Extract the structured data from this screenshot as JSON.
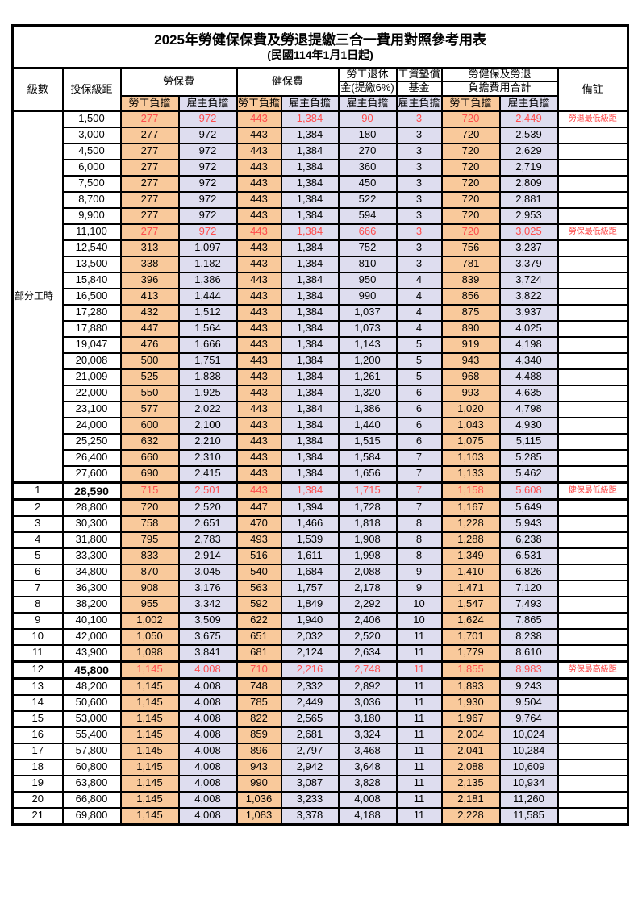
{
  "title": "2025年勞健保保費及勞退提繳三合一費用對照參考用表",
  "subtitle": "(民國114年1月1日起)",
  "colors": {
    "employee_bg": "#F9C99B",
    "employer_bg": "#DEDDEF",
    "value_red": "#FF4D4D",
    "note_red": "#FF4040",
    "border": "#000000"
  },
  "header": {
    "level": "級數",
    "bracket": "投保級距",
    "labor_insurance": "勞保費",
    "health_insurance": "健保費",
    "pension_line1": "勞工退休",
    "pension_line2": "金(提繳6%)",
    "wage_fund_line1": "工資墊償",
    "wage_fund_line2": "基金",
    "total_line1": "勞健保及勞退",
    "total_line2": "負擔費用合計",
    "note": "備註",
    "employee": "勞工負擔",
    "employer": "雇主負擔"
  },
  "part_time_label": "部分工時",
  "part_time_rowspan": 23,
  "rows": [
    {
      "level": "",
      "bracket": "1,500",
      "values": [
        "277",
        "972",
        "443",
        "1,384",
        "90",
        "3",
        "720",
        "2,449"
      ],
      "note": "勞退最低級距",
      "red": true,
      "bold": false,
      "thick": false
    },
    {
      "level": "",
      "bracket": "3,000",
      "values": [
        "277",
        "972",
        "443",
        "1,384",
        "180",
        "3",
        "720",
        "2,539"
      ],
      "note": "",
      "red": false,
      "bold": false,
      "thick": false
    },
    {
      "level": "",
      "bracket": "4,500",
      "values": [
        "277",
        "972",
        "443",
        "1,384",
        "270",
        "3",
        "720",
        "2,629"
      ],
      "note": "",
      "red": false,
      "bold": false,
      "thick": false
    },
    {
      "level": "",
      "bracket": "6,000",
      "values": [
        "277",
        "972",
        "443",
        "1,384",
        "360",
        "3",
        "720",
        "2,719"
      ],
      "note": "",
      "red": false,
      "bold": false,
      "thick": false
    },
    {
      "level": "",
      "bracket": "7,500",
      "values": [
        "277",
        "972",
        "443",
        "1,384",
        "450",
        "3",
        "720",
        "2,809"
      ],
      "note": "",
      "red": false,
      "bold": false,
      "thick": false
    },
    {
      "level": "",
      "bracket": "8,700",
      "values": [
        "277",
        "972",
        "443",
        "1,384",
        "522",
        "3",
        "720",
        "2,881"
      ],
      "note": "",
      "red": false,
      "bold": false,
      "thick": false
    },
    {
      "level": "",
      "bracket": "9,900",
      "values": [
        "277",
        "972",
        "443",
        "1,384",
        "594",
        "3",
        "720",
        "2,953"
      ],
      "note": "",
      "red": false,
      "bold": false,
      "thick": false
    },
    {
      "level": "",
      "bracket": "11,100",
      "values": [
        "277",
        "972",
        "443",
        "1,384",
        "666",
        "3",
        "720",
        "3,025"
      ],
      "note": "勞保最低級距",
      "red": true,
      "bold": false,
      "thick": false
    },
    {
      "level": "",
      "bracket": "12,540",
      "values": [
        "313",
        "1,097",
        "443",
        "1,384",
        "752",
        "3",
        "756",
        "3,237"
      ],
      "note": "",
      "red": false,
      "bold": false,
      "thick": false
    },
    {
      "level": "",
      "bracket": "13,500",
      "values": [
        "338",
        "1,182",
        "443",
        "1,384",
        "810",
        "3",
        "781",
        "3,379"
      ],
      "note": "",
      "red": false,
      "bold": false,
      "thick": false
    },
    {
      "level": "",
      "bracket": "15,840",
      "values": [
        "396",
        "1,386",
        "443",
        "1,384",
        "950",
        "4",
        "839",
        "3,724"
      ],
      "note": "",
      "red": false,
      "bold": false,
      "thick": false
    },
    {
      "level": "",
      "bracket": "16,500",
      "values": [
        "413",
        "1,444",
        "443",
        "1,384",
        "990",
        "4",
        "856",
        "3,822"
      ],
      "note": "",
      "red": false,
      "bold": false,
      "thick": false
    },
    {
      "level": "",
      "bracket": "17,280",
      "values": [
        "432",
        "1,512",
        "443",
        "1,384",
        "1,037",
        "4",
        "875",
        "3,937"
      ],
      "note": "",
      "red": false,
      "bold": false,
      "thick": false
    },
    {
      "level": "",
      "bracket": "17,880",
      "values": [
        "447",
        "1,564",
        "443",
        "1,384",
        "1,073",
        "4",
        "890",
        "4,025"
      ],
      "note": "",
      "red": false,
      "bold": false,
      "thick": false
    },
    {
      "level": "",
      "bracket": "19,047",
      "values": [
        "476",
        "1,666",
        "443",
        "1,384",
        "1,143",
        "5",
        "919",
        "4,198"
      ],
      "note": "",
      "red": false,
      "bold": false,
      "thick": false
    },
    {
      "level": "",
      "bracket": "20,008",
      "values": [
        "500",
        "1,751",
        "443",
        "1,384",
        "1,200",
        "5",
        "943",
        "4,340"
      ],
      "note": "",
      "red": false,
      "bold": false,
      "thick": false
    },
    {
      "level": "",
      "bracket": "21,009",
      "values": [
        "525",
        "1,838",
        "443",
        "1,384",
        "1,261",
        "5",
        "968",
        "4,488"
      ],
      "note": "",
      "red": false,
      "bold": false,
      "thick": false
    },
    {
      "level": "",
      "bracket": "22,000",
      "values": [
        "550",
        "1,925",
        "443",
        "1,384",
        "1,320",
        "6",
        "993",
        "4,635"
      ],
      "note": "",
      "red": false,
      "bold": false,
      "thick": false
    },
    {
      "level": "",
      "bracket": "23,100",
      "values": [
        "577",
        "2,022",
        "443",
        "1,384",
        "1,386",
        "6",
        "1,020",
        "4,798"
      ],
      "note": "",
      "red": false,
      "bold": false,
      "thick": false
    },
    {
      "level": "",
      "bracket": "24,000",
      "values": [
        "600",
        "2,100",
        "443",
        "1,384",
        "1,440",
        "6",
        "1,043",
        "4,930"
      ],
      "note": "",
      "red": false,
      "bold": false,
      "thick": false
    },
    {
      "level": "",
      "bracket": "25,250",
      "values": [
        "632",
        "2,210",
        "443",
        "1,384",
        "1,515",
        "6",
        "1,075",
        "5,115"
      ],
      "note": "",
      "red": false,
      "bold": false,
      "thick": false
    },
    {
      "level": "",
      "bracket": "26,400",
      "values": [
        "660",
        "2,310",
        "443",
        "1,384",
        "1,584",
        "7",
        "1,103",
        "5,285"
      ],
      "note": "",
      "red": false,
      "bold": false,
      "thick": false
    },
    {
      "level": "",
      "bracket": "27,600",
      "values": [
        "690",
        "2,415",
        "443",
        "1,384",
        "1,656",
        "7",
        "1,133",
        "5,462"
      ],
      "note": "",
      "red": false,
      "bold": false,
      "thick": false
    },
    {
      "level": "1",
      "bracket": "28,590",
      "values": [
        "715",
        "2,501",
        "443",
        "1,384",
        "1,715",
        "7",
        "1,158",
        "5,608"
      ],
      "note": "健保最低級距",
      "red": true,
      "bold": true,
      "thick": true
    },
    {
      "level": "2",
      "bracket": "28,800",
      "values": [
        "720",
        "2,520",
        "447",
        "1,394",
        "1,728",
        "7",
        "1,167",
        "5,649"
      ],
      "note": "",
      "red": false,
      "bold": false,
      "thick": false
    },
    {
      "level": "3",
      "bracket": "30,300",
      "values": [
        "758",
        "2,651",
        "470",
        "1,466",
        "1,818",
        "8",
        "1,228",
        "5,943"
      ],
      "note": "",
      "red": false,
      "bold": false,
      "thick": false
    },
    {
      "level": "4",
      "bracket": "31,800",
      "values": [
        "795",
        "2,783",
        "493",
        "1,539",
        "1,908",
        "8",
        "1,288",
        "6,238"
      ],
      "note": "",
      "red": false,
      "bold": false,
      "thick": false
    },
    {
      "level": "5",
      "bracket": "33,300",
      "values": [
        "833",
        "2,914",
        "516",
        "1,611",
        "1,998",
        "8",
        "1,349",
        "6,531"
      ],
      "note": "",
      "red": false,
      "bold": false,
      "thick": false
    },
    {
      "level": "6",
      "bracket": "34,800",
      "values": [
        "870",
        "3,045",
        "540",
        "1,684",
        "2,088",
        "9",
        "1,410",
        "6,826"
      ],
      "note": "",
      "red": false,
      "bold": false,
      "thick": false
    },
    {
      "level": "7",
      "bracket": "36,300",
      "values": [
        "908",
        "3,176",
        "563",
        "1,757",
        "2,178",
        "9",
        "1,471",
        "7,120"
      ],
      "note": "",
      "red": false,
      "bold": false,
      "thick": false
    },
    {
      "level": "8",
      "bracket": "38,200",
      "values": [
        "955",
        "3,342",
        "592",
        "1,849",
        "2,292",
        "10",
        "1,547",
        "7,493"
      ],
      "note": "",
      "red": false,
      "bold": false,
      "thick": false
    },
    {
      "level": "9",
      "bracket": "40,100",
      "values": [
        "1,002",
        "3,509",
        "622",
        "1,940",
        "2,406",
        "10",
        "1,624",
        "7,865"
      ],
      "note": "",
      "red": false,
      "bold": false,
      "thick": false
    },
    {
      "level": "10",
      "bracket": "42,000",
      "values": [
        "1,050",
        "3,675",
        "651",
        "2,032",
        "2,520",
        "11",
        "1,701",
        "8,238"
      ],
      "note": "",
      "red": false,
      "bold": false,
      "thick": false
    },
    {
      "level": "11",
      "bracket": "43,900",
      "values": [
        "1,098",
        "3,841",
        "681",
        "2,124",
        "2,634",
        "11",
        "1,779",
        "8,610"
      ],
      "note": "",
      "red": false,
      "bold": false,
      "thick": false
    },
    {
      "level": "12",
      "bracket": "45,800",
      "values": [
        "1,145",
        "4,008",
        "710",
        "2,216",
        "2,748",
        "11",
        "1,855",
        "8,983"
      ],
      "note": "勞保最高級距",
      "red": true,
      "bold": true,
      "thick": true
    },
    {
      "level": "13",
      "bracket": "48,200",
      "values": [
        "1,145",
        "4,008",
        "748",
        "2,332",
        "2,892",
        "11",
        "1,893",
        "9,243"
      ],
      "note": "",
      "red": false,
      "bold": false,
      "thick": false
    },
    {
      "level": "14",
      "bracket": "50,600",
      "values": [
        "1,145",
        "4,008",
        "785",
        "2,449",
        "3,036",
        "11",
        "1,930",
        "9,504"
      ],
      "note": "",
      "red": false,
      "bold": false,
      "thick": false
    },
    {
      "level": "15",
      "bracket": "53,000",
      "values": [
        "1,145",
        "4,008",
        "822",
        "2,565",
        "3,180",
        "11",
        "1,967",
        "9,764"
      ],
      "note": "",
      "red": false,
      "bold": false,
      "thick": false
    },
    {
      "level": "16",
      "bracket": "55,400",
      "values": [
        "1,145",
        "4,008",
        "859",
        "2,681",
        "3,324",
        "11",
        "2,004",
        "10,024"
      ],
      "note": "",
      "red": false,
      "bold": false,
      "thick": false
    },
    {
      "level": "17",
      "bracket": "57,800",
      "values": [
        "1,145",
        "4,008",
        "896",
        "2,797",
        "3,468",
        "11",
        "2,041",
        "10,284"
      ],
      "note": "",
      "red": false,
      "bold": false,
      "thick": false
    },
    {
      "level": "18",
      "bracket": "60,800",
      "values": [
        "1,145",
        "4,008",
        "943",
        "2,942",
        "3,648",
        "11",
        "2,088",
        "10,609"
      ],
      "note": "",
      "red": false,
      "bold": false,
      "thick": false
    },
    {
      "level": "19",
      "bracket": "63,800",
      "values": [
        "1,145",
        "4,008",
        "990",
        "3,087",
        "3,828",
        "11",
        "2,135",
        "10,934"
      ],
      "note": "",
      "red": false,
      "bold": false,
      "thick": false
    },
    {
      "level": "20",
      "bracket": "66,800",
      "values": [
        "1,145",
        "4,008",
        "1,036",
        "3,233",
        "4,008",
        "11",
        "2,181",
        "11,260"
      ],
      "note": "",
      "red": false,
      "bold": false,
      "thick": false
    },
    {
      "level": "21",
      "bracket": "69,800",
      "values": [
        "1,145",
        "4,008",
        "1,083",
        "3,378",
        "4,188",
        "11",
        "2,228",
        "11,585"
      ],
      "note": "",
      "red": false,
      "bold": false,
      "thick": false
    }
  ]
}
